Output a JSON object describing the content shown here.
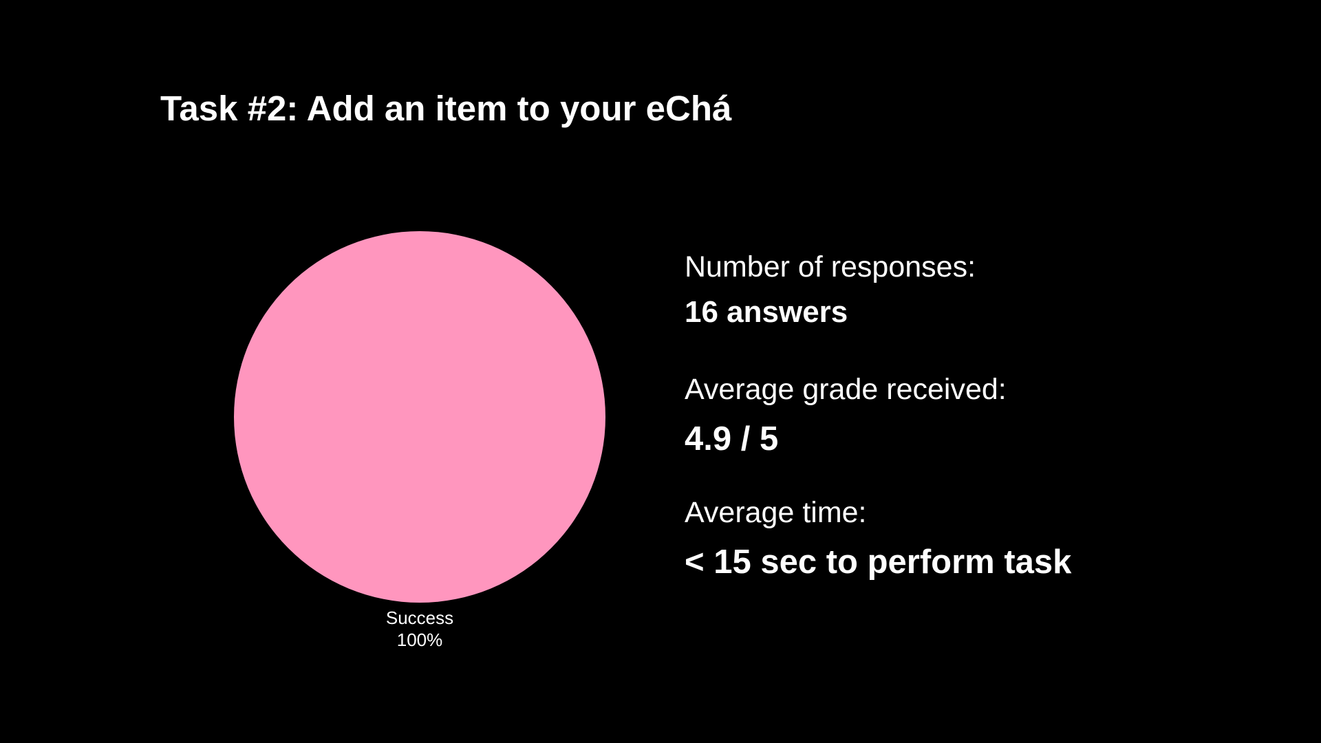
{
  "title": "Task #2: Add an item to your eChá",
  "chart_data": {
    "type": "pie",
    "categories": [
      "Success"
    ],
    "values": [
      100
    ],
    "labels": [
      "Success",
      "100%"
    ],
    "colors": [
      "#ff96be"
    ]
  },
  "stats": {
    "responses_label": "Number of responses:",
    "responses_value": "16 answers",
    "grade_label": "Average grade received:",
    "grade_value": "4.9 / 5",
    "time_label": "Average time:",
    "time_value": "< 15 sec to perform task"
  },
  "colors": {
    "background": "#000000",
    "text": "#ffffff",
    "pie_fill": "#ff96be"
  }
}
